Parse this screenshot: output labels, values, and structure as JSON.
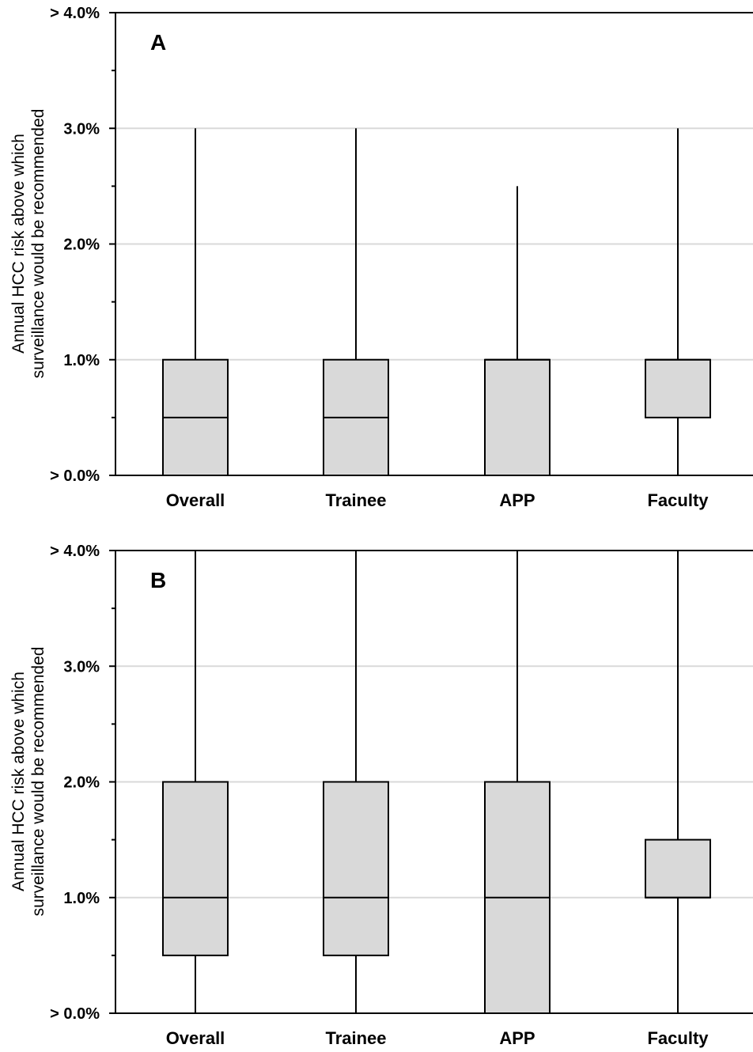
{
  "chart_data": [
    {
      "type": "box",
      "panel_label": "A",
      "categories": [
        "Overall",
        "Trainee",
        "APP",
        "Faculty"
      ],
      "ylabel_lines": [
        "Annual HCC risk above which",
        "surveillance would be recommended"
      ],
      "yticks": [
        "> 0.0%",
        "1.0%",
        "2.0%",
        "3.0%",
        "> 4.0%"
      ],
      "ylim": [
        0,
        4
      ],
      "grid": true,
      "boxes": [
        {
          "min": 0,
          "q1": 0,
          "median": 0.5,
          "q3": 1.0,
          "max": 3.0
        },
        {
          "min": 0,
          "q1": 0,
          "median": 0.5,
          "q3": 1.0,
          "max": 3.0
        },
        {
          "min": 0,
          "q1": 0,
          "median": 1.0,
          "q3": 1.0,
          "max": 2.5
        },
        {
          "min": 0,
          "q1": 0.5,
          "median": 1.0,
          "q3": 1.0,
          "max": 3.0
        }
      ]
    },
    {
      "type": "box",
      "panel_label": "B",
      "categories": [
        "Overall",
        "Trainee",
        "APP",
        "Faculty"
      ],
      "ylabel_lines": [
        "Annual HCC risk above which",
        "surveillance would be recommended"
      ],
      "yticks": [
        "> 0.0%",
        "1.0%",
        "2.0%",
        "3.0%",
        "> 4.0%"
      ],
      "ylim": [
        0,
        4
      ],
      "grid": true,
      "boxes": [
        {
          "min": 0,
          "q1": 0.5,
          "median": 1.0,
          "q3": 2.0,
          "max": 4.0
        },
        {
          "min": 0,
          "q1": 0.5,
          "median": 1.0,
          "q3": 2.0,
          "max": 4.0
        },
        {
          "min": 0,
          "q1": 0,
          "median": 1.0,
          "q3": 2.0,
          "max": 4.0
        },
        {
          "min": 0,
          "q1": 1.0,
          "median": 1.0,
          "q3": 1.5,
          "max": 4.0
        }
      ]
    }
  ],
  "colors": {
    "box_fill": "#d9d9d9",
    "grid": "#d9d9d9",
    "ink": "#000000"
  }
}
